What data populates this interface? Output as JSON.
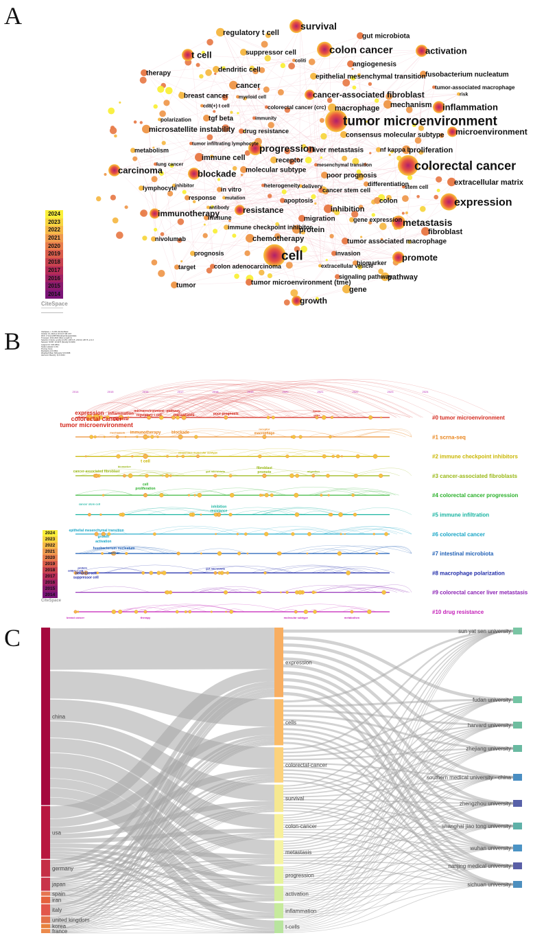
{
  "panels": {
    "a": "A",
    "b": "B",
    "c": "C"
  },
  "network": {
    "keywords": [
      {
        "t": "regulatory t cell",
        "s": 11
      },
      {
        "t": "survival",
        "s": 14
      },
      {
        "t": "gut microbiota",
        "s": 10
      },
      {
        "t": "colon cancer",
        "s": 15
      },
      {
        "t": "activation",
        "s": 13
      },
      {
        "t": "t cell",
        "s": 13
      },
      {
        "t": "suppressor cell",
        "s": 10
      },
      {
        "t": "coliti",
        "s": 7
      },
      {
        "t": "angiogenesis",
        "s": 10
      },
      {
        "t": "dendritic cell",
        "s": 10
      },
      {
        "t": "fusobacterium nucleatum",
        "s": 10
      },
      {
        "t": "therapy",
        "s": 10
      },
      {
        "t": "epithelial mesenchymal transition",
        "s": 10
      },
      {
        "t": "cancer",
        "s": 11
      },
      {
        "t": "tumor-associated macrophage",
        "s": 8
      },
      {
        "t": "breast cancer",
        "s": 10
      },
      {
        "t": "myeloid cell",
        "s": 7
      },
      {
        "t": "cancer-associated fibroblast",
        "s": 12
      },
      {
        "t": "risk",
        "s": 7
      },
      {
        "t": "cd8(+) t cell",
        "s": 7
      },
      {
        "t": "colorectal cancer (crc)",
        "s": 8
      },
      {
        "t": "macrophage",
        "s": 11
      },
      {
        "t": "mechanism",
        "s": 11
      },
      {
        "t": "inflammation",
        "s": 13
      },
      {
        "t": "polarization",
        "s": 8
      },
      {
        "t": "tgf beta",
        "s": 10
      },
      {
        "t": "immunity",
        "s": 7
      },
      {
        "t": "tumor microenvironment",
        "s": 19
      },
      {
        "t": "microsatellite instability",
        "s": 11
      },
      {
        "t": "drug resistance",
        "s": 9
      },
      {
        "t": "consensus molecular subtype",
        "s": 10
      },
      {
        "t": "microenvironment",
        "s": 12
      },
      {
        "t": "tumor infiltrating lymphocyte",
        "s": 7
      },
      {
        "t": "metabolism",
        "s": 9
      },
      {
        "t": "progression",
        "s": 14
      },
      {
        "t": "liver metastasis",
        "s": 10
      },
      {
        "t": "nf kappa b",
        "s": 9
      },
      {
        "t": "proliferation",
        "s": 11
      },
      {
        "t": "immune cell",
        "s": 11
      },
      {
        "t": "receptor",
        "s": 10
      },
      {
        "t": "carcinoma",
        "s": 13
      },
      {
        "t": "lung cancer",
        "s": 7
      },
      {
        "t": "blockade",
        "s": 13
      },
      {
        "t": "molecular subtype",
        "s": 10
      },
      {
        "t": "mesenchymal transition",
        "s": 7
      },
      {
        "t": "colorectal cancer",
        "s": 18
      },
      {
        "t": "poor prognosis",
        "s": 10
      },
      {
        "t": "stem cell",
        "s": 8
      },
      {
        "t": "inhibitor",
        "s": 7
      },
      {
        "t": "in vitro",
        "s": 9
      },
      {
        "t": "heterogeneity",
        "s": 8
      },
      {
        "t": "delivery",
        "s": 8
      },
      {
        "t": "differentiation",
        "s": 9
      },
      {
        "t": "extracellular matrix",
        "s": 11
      },
      {
        "t": "lymphocyte",
        "s": 9
      },
      {
        "t": "response",
        "s": 9
      },
      {
        "t": "cancer stem cell",
        "s": 9
      },
      {
        "t": "mutation",
        "s": 7
      },
      {
        "t": "colon",
        "s": 10
      },
      {
        "t": "expression",
        "s": 16
      },
      {
        "t": "antibody",
        "s": 7
      },
      {
        "t": "resistance",
        "s": 12
      },
      {
        "t": "apoptosis",
        "s": 9
      },
      {
        "t": "immunotherapy",
        "s": 12
      },
      {
        "t": "immune",
        "s": 9
      },
      {
        "t": "inhibition",
        "s": 11
      },
      {
        "t": "gene expression",
        "s": 9
      },
      {
        "t": "metastasis",
        "s": 14
      },
      {
        "t": "migration",
        "s": 10
      },
      {
        "t": "immune checkpoint inhibitor",
        "s": 9
      },
      {
        "t": "protein",
        "s": 11
      },
      {
        "t": "fibroblast",
        "s": 11
      },
      {
        "t": "nivolumab",
        "s": 9
      },
      {
        "t": "chemotherapy",
        "s": 11
      },
      {
        "t": "tumor associated macrophage",
        "s": 10
      },
      {
        "t": "prognosis",
        "s": 9
      },
      {
        "t": "cell",
        "s": 19
      },
      {
        "t": "invasion",
        "s": 9
      },
      {
        "t": "promote",
        "s": 13
      },
      {
        "t": "target",
        "s": 9
      },
      {
        "t": "colon adenocarcinoma",
        "s": 9
      },
      {
        "t": "extracellular vesicle",
        "s": 8
      },
      {
        "t": "biomarker",
        "s": 9
      },
      {
        "t": "signaling pathway",
        "s": 9
      },
      {
        "t": "pathway",
        "s": 11
      },
      {
        "t": "tumor",
        "s": 10
      },
      {
        "t": "tumor microenvironment (tme)",
        "s": 10
      },
      {
        "t": "gene",
        "s": 11
      },
      {
        "t": "growth",
        "s": 12
      }
    ],
    "legend_years": [
      "2024",
      "2023",
      "2022",
      "2021",
      "2020",
      "2019",
      "2018",
      "2017",
      "2016",
      "2015",
      "2014"
    ],
    "legend_colors": [
      "#f9ef3a",
      "#f7d640",
      "#f5b949",
      "#ef9a4f",
      "#e87d4c",
      "#da5d4c",
      "#c8424f",
      "#b52c58",
      "#9f2163",
      "#8a1a6e",
      "#7a1477"
    ],
    "brand": "CiteSpace"
  },
  "timeline": {
    "header_lines": [
      "CiteSpace, v. 6.3.R1 (64-bit) Basic",
      "October 31, 2024 at 10:31:27 AM CST",
      "WoS: C:\\Users\\9874\\Desktop\\citespace\\data",
      "Timespan: 2014-2024 (Slice Length=1)",
      "Selection Criteria: g-index (k=25), LRF=2.5, L/N=10, LBY=5, e=1.0",
      "Network: N=667, E=4276 (Density=0.0193)",
      "Largest CC: 636 (95%)",
      "Nodes Labeled: 1.0%",
      "Pruning: None",
      "Modularity Q=0.3841",
      "Weighted Mean Silhouette S=0.6938",
      "Harmonic Mean(Q, S)=0.4944"
    ],
    "years": [
      "2014",
      "2015",
      "2016",
      "2017",
      "2018",
      "2019",
      "2020",
      "2021",
      "2022",
      "2023",
      "2024"
    ],
    "clusters": [
      {
        "label": "#0 tumor microenvironment",
        "color": "#d42a1e"
      },
      {
        "label": "#1 scrna-seq",
        "color": "#e9851d"
      },
      {
        "label": "#2 immune checkpoint inhibitors",
        "color": "#c9b600"
      },
      {
        "label": "#3 cancer-associated fibroblasts",
        "color": "#98b714"
      },
      {
        "label": "#4 colorectal cancer progression",
        "color": "#2ab02a"
      },
      {
        "label": "#5 immune infiltration",
        "color": "#17b3a0"
      },
      {
        "label": "#6 colorectal cancer",
        "color": "#17a5c6"
      },
      {
        "label": "#7 intestinal microbiota",
        "color": "#1f5fb5"
      },
      {
        "label": "#8 macrophage polarization",
        "color": "#1e2aa8"
      },
      {
        "label": "#9 colorectal cancer liver metastasis",
        "color": "#8a1fb3"
      },
      {
        "label": "#10 drug resistance",
        "color": "#c41fb8"
      }
    ],
    "node_labels": [
      {
        "t": "expression",
        "row": 0,
        "yr": 0.4,
        "dy": -4,
        "size": 8
      },
      {
        "t": "colorectal cancer",
        "row": 0,
        "yr": 0.6,
        "dy": 5,
        "size": 9
      },
      {
        "t": "tumor microenvironment",
        "row": 0,
        "yr": 0.6,
        "dy": 14,
        "size": 9
      },
      {
        "t": "inflammation",
        "row": 0,
        "yr": 1.3,
        "dy": -4,
        "size": 6
      },
      {
        "t": "survival",
        "row": 0,
        "yr": 1.3,
        "dy": 4,
        "size": 6
      },
      {
        "t": "microenvironment",
        "row": 0,
        "yr": 2.1,
        "dy": -8,
        "size": 5
      },
      {
        "t": "regulatory t cell",
        "row": 0,
        "yr": 2.1,
        "dy": -2,
        "size": 5
      },
      {
        "t": "pathway",
        "row": 0,
        "yr": 2.8,
        "dy": -8,
        "size": 5
      },
      {
        "t": "metastasis",
        "row": 0,
        "yr": 3.1,
        "dy": -2,
        "size": 6
      },
      {
        "t": "poor prognosis",
        "row": 0,
        "yr": 4.3,
        "dy": -4,
        "size": 5
      },
      {
        "t": "tumor",
        "row": 0,
        "yr": 6.9,
        "dy": -8,
        "size": 4
      },
      {
        "t": "gene",
        "row": 0,
        "yr": 6.9,
        "dy": -2,
        "size": 4
      },
      {
        "t": "mechanism",
        "row": 1,
        "yr": 1.2,
        "dy": -5,
        "size": 4
      },
      {
        "t": "immunotherapy",
        "row": 1,
        "yr": 2.0,
        "dy": -5,
        "size": 6
      },
      {
        "t": "blockade",
        "row": 1,
        "yr": 3.0,
        "dy": -5,
        "size": 6
      },
      {
        "t": "receptor",
        "row": 1,
        "yr": 5.4,
        "dy": -10,
        "size": 4
      },
      {
        "t": "macrophage",
        "row": 1,
        "yr": 5.4,
        "dy": -4,
        "size": 5
      },
      {
        "t": "t cell",
        "row": 2,
        "yr": 2.0,
        "dy": 9,
        "size": 6
      },
      {
        "t": "consensus molecular subtype",
        "row": 2,
        "yr": 3.5,
        "dy": -4,
        "size": 4
      },
      {
        "t": "cancer-associated fibroblast",
        "row": 3,
        "yr": 0.6,
        "dy": -5,
        "size": 5
      },
      {
        "t": "biomarker",
        "row": 3,
        "yr": 1.4,
        "dy": -12,
        "size": 4
      },
      {
        "t": "gut microbiota",
        "row": 3,
        "yr": 4.0,
        "dy": -5,
        "size": 4
      },
      {
        "t": "fibroblast",
        "row": 3,
        "yr": 5.4,
        "dy": -10,
        "size": 5
      },
      {
        "t": "promote",
        "row": 3,
        "yr": 5.4,
        "dy": -4,
        "size": 5
      },
      {
        "t": "migration",
        "row": 3,
        "yr": 6.8,
        "dy": -5,
        "size": 4
      },
      {
        "t": "cell",
        "row": 4,
        "yr": 2.0,
        "dy": -14,
        "size": 5
      },
      {
        "t": "proliferation",
        "row": 4,
        "yr": 2.0,
        "dy": -8,
        "size": 5
      },
      {
        "t": "inhibition",
        "row": 5,
        "yr": 4.1,
        "dy": -10,
        "size": 5
      },
      {
        "t": "resistance",
        "row": 5,
        "yr": 4.1,
        "dy": -4,
        "size": 5
      },
      {
        "t": "cancer stem cell",
        "row": 5,
        "yr": 0.4,
        "dy": -14,
        "size": 4
      },
      {
        "t": "epithelial mesenchymal transition",
        "row": 6,
        "yr": 0.6,
        "dy": -4,
        "size": 5
      },
      {
        "t": "growth",
        "row": 6,
        "yr": 0.8,
        "dy": 5,
        "size": 5
      },
      {
        "t": "activation",
        "row": 6,
        "yr": 0.8,
        "dy": 12,
        "size": 5
      },
      {
        "t": "fusobacterium nucleatum",
        "row": 7,
        "yr": 1.1,
        "dy": -6,
        "size": 5
      },
      {
        "t": "cancer",
        "row": 7,
        "yr": 1.1,
        "dy": 1,
        "size": 5
      },
      {
        "t": "protein",
        "row": 8,
        "yr": 0.2,
        "dy": -6,
        "size": 4
      },
      {
        "t": "dendritic cell",
        "row": 8,
        "yr": 0.3,
        "dy": 2,
        "size": 5
      },
      {
        "t": "suppressor cell",
        "row": 8,
        "yr": 0.3,
        "dy": 8,
        "size": 5
      },
      {
        "t": "cd8(+) t cell",
        "row": 8,
        "yr": 0.0,
        "dy": -2,
        "size": 4
      },
      {
        "t": "gut microbiota",
        "row": 8,
        "yr": 4.0,
        "dy": -5,
        "size": 4
      },
      {
        "t": "breast cancer",
        "row": 10,
        "yr": 0.0,
        "dy": 10,
        "size": 4
      },
      {
        "t": "therapy",
        "row": 10,
        "yr": 2.0,
        "dy": 10,
        "size": 4
      },
      {
        "t": "molecular subtype",
        "row": 10,
        "yr": 6.3,
        "dy": 10,
        "size": 4
      },
      {
        "t": "metabolism",
        "row": 10,
        "yr": 7.9,
        "dy": 10,
        "size": 4
      }
    ]
  },
  "sankey": {
    "countries": [
      {
        "label": "china",
        "value": 47.0,
        "color": "#a5093e"
      },
      {
        "label": "usa",
        "value": 14.0,
        "color": "#b8163f"
      },
      {
        "label": "germany",
        "value": 4.5,
        "color": "#c52f46"
      },
      {
        "label": "japan",
        "value": 3.5,
        "color": "#c9344a"
      },
      {
        "label": "spain",
        "value": 1.1,
        "color": "#e6744f"
      },
      {
        "label": "iran",
        "value": 1.8,
        "color": "#e5623d"
      },
      {
        "label": "italy",
        "value": 3.0,
        "color": "#e2574b"
      },
      {
        "label": "united kingdom",
        "value": 1.8,
        "color": "#e37048"
      },
      {
        "label": "korea",
        "value": 1.1,
        "color": "#e7813d"
      },
      {
        "label": "france",
        "value": 1.1,
        "color": "#ec8a4c"
      }
    ],
    "keywords": [
      {
        "label": "expression",
        "value": 14.2,
        "color": "#f8ae61"
      },
      {
        "label": "cells",
        "value": 9.4,
        "color": "#fbbb66"
      },
      {
        "label": "colorectal-cancer",
        "value": 7.2,
        "color": "#fcd27c"
      },
      {
        "label": "survival",
        "value": 5.6,
        "color": "#f6e890"
      },
      {
        "label": "colon-cancer",
        "value": 4.9,
        "color": "#f8f09a"
      },
      {
        "label": "metastasis",
        "value": 4.9,
        "color": "#f6f4a3"
      },
      {
        "label": "progression",
        "value": 3.6,
        "color": "#e7f39c"
      },
      {
        "label": "activation",
        "value": 3.1,
        "color": "#d5ee9b"
      },
      {
        "label": "inflammation",
        "value": 3.1,
        "color": "#c6ea9c"
      },
      {
        "label": "t-cells",
        "value": 2.6,
        "color": "#b8e49e"
      }
    ],
    "universities": [
      {
        "label": "sun yat sen university",
        "color": "#7ac5a4"
      },
      {
        "label": "fudan university",
        "color": "#73c4a3"
      },
      {
        "label": "harvard university",
        "color": "#6ebd9f"
      },
      {
        "label": "zhejiang university",
        "color": "#69b9a1"
      },
      {
        "label": "southern medical university - china",
        "color": "#4a8ec2"
      },
      {
        "label": "zhengzhou university",
        "color": "#5861a8"
      },
      {
        "label": "shanghai jiao tong university",
        "color": "#5fb1a8"
      },
      {
        "label": "wuhan university",
        "color": "#4b93c4"
      },
      {
        "label": "nanjing medical university",
        "color": "#5a5fa6"
      },
      {
        "label": "sichuan university",
        "color": "#4d8fbe"
      }
    ]
  }
}
